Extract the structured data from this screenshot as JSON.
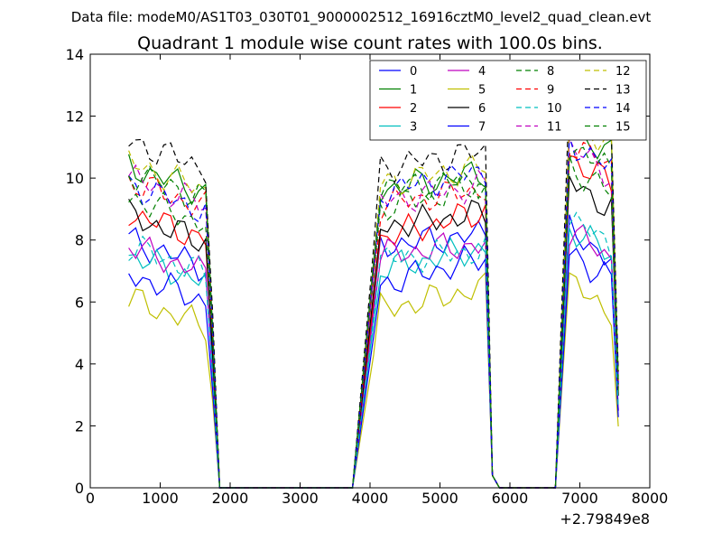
{
  "chart_data": {
    "type": "line",
    "suptitle": "Data file: modeM0/AS1T03_030T01_9000002512_16916cztM0_level2_quad_clean.evt",
    "title": "Quadrant 1 module wise count rates with 100.0s bins.",
    "xlabel": "",
    "ylabel": "",
    "x_offset_label": "+2.79849e8",
    "xlim": [
      0,
      8000
    ],
    "ylim": [
      0,
      14
    ],
    "xticks": [
      0,
      1000,
      2000,
      3000,
      4000,
      5000,
      6000,
      7000,
      8000
    ],
    "yticks": [
      0,
      2,
      4,
      6,
      8,
      10,
      12,
      14
    ],
    "legend_position": "top-right",
    "legend_columns": 4,
    "segments": [
      {
        "x_start": 550,
        "x_step": 100,
        "count": 13
      },
      {
        "x_start": 1850,
        "x_step": 100,
        "count": 20
      },
      {
        "x_start": 4050,
        "x_step": 100,
        "count": 17
      },
      {
        "x_start": 5750,
        "x_step": 100,
        "count": 10
      },
      {
        "x_start": 6850,
        "x_step": 100,
        "count": 8
      }
    ],
    "series": [
      {
        "name": "0",
        "color": "#0000ff",
        "dash": "solid",
        "base": [
          8.0,
          7.8,
          7.3,
          8.3
        ]
      },
      {
        "name": "1",
        "color": "#008000",
        "dash": "solid",
        "base": [
          10.4,
          9.6,
          9.3,
          11.6
        ]
      },
      {
        "name": "2",
        "color": "#ff0000",
        "dash": "solid",
        "base": [
          8.9,
          8.0,
          8.1,
          10.7
        ]
      },
      {
        "name": "3",
        "color": "#00bfbf",
        "dash": "solid",
        "base": [
          7.5,
          7.0,
          6.9,
          8.4
        ]
      },
      {
        "name": "4",
        "color": "#bf00bf",
        "dash": "solid",
        "base": [
          7.8,
          7.5,
          7.0,
          8.3
        ]
      },
      {
        "name": "5",
        "color": "#bfbf00",
        "dash": "solid",
        "base": [
          6.1,
          5.7,
          5.6,
          6.6
        ]
      },
      {
        "name": "6",
        "color": "#000000",
        "dash": "solid",
        "base": [
          8.8,
          8.4,
          8.0,
          9.9
        ]
      },
      {
        "name": "7",
        "color": "#0000ff",
        "dash": "solid",
        "base": [
          6.9,
          6.5,
          6.6,
          7.6
        ]
      },
      {
        "name": "8",
        "color": "#008000",
        "dash": "dashed",
        "base": [
          9.4,
          9.0,
          8.9,
          10.4
        ]
      },
      {
        "name": "9",
        "color": "#ff0000",
        "dash": "dashed",
        "base": [
          9.9,
          9.1,
          8.8,
          11.2
        ]
      },
      {
        "name": "10",
        "color": "#00bfbf",
        "dash": "dashed",
        "base": [
          7.8,
          7.3,
          6.8,
          8.7
        ]
      },
      {
        "name": "11",
        "color": "#bf00bf",
        "dash": "dashed",
        "base": [
          10.0,
          9.2,
          8.9,
          11.0
        ]
      },
      {
        "name": "12",
        "color": "#bfbf00",
        "dash": "dashed",
        "base": [
          10.5,
          9.8,
          9.5,
          12.0
        ]
      },
      {
        "name": "13",
        "color": "#000000",
        "dash": "dashed",
        "base": [
          11.2,
          10.3,
          10.0,
          12.5
        ]
      },
      {
        "name": "14",
        "color": "#0000ff",
        "dash": "dashed",
        "base": [
          9.8,
          9.5,
          9.4,
          11.2
        ]
      },
      {
        "name": "15",
        "color": "#008000",
        "dash": "dashed",
        "base": [
          10.2,
          9.7,
          9.0,
          11.1
        ]
      }
    ]
  }
}
